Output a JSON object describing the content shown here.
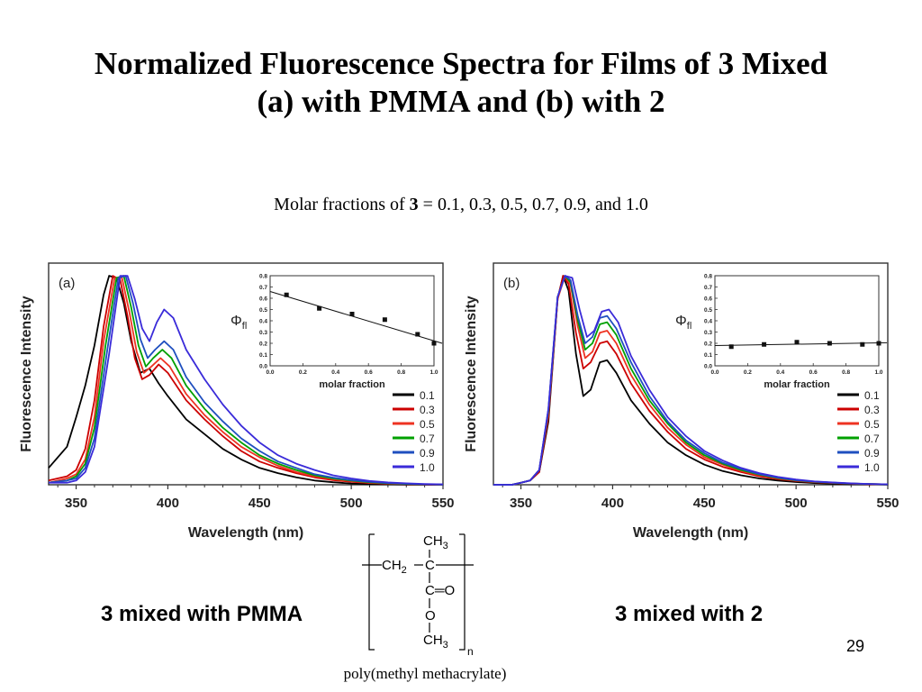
{
  "slide": {
    "title_line1": "Normalized Fluorescence Spectra for Films of 3 Mixed",
    "title_line2": "(a) with PMMA and (b) with 2",
    "subtitle_prefix": "Molar fractions of ",
    "subtitle_bold": "3",
    "subtitle_suffix": " = 0.1, 0.3, 0.5, 0.7, 0.9, and 1.0",
    "caption_left": "3 mixed with PMMA",
    "caption_right": "3 mixed with 2",
    "page_number": "29",
    "polymer_label": "poly(methyl methacrylate)",
    "formula": {
      "ch3_top": "CH3",
      "ch2": "CH2",
      "carbon": "C",
      "carbonyl": "C=O",
      "oxygen": "O",
      "ch3_bottom": "CH3",
      "repeat": "n"
    }
  },
  "chart_data": [
    {
      "type": "line",
      "panel_label": "(a)",
      "xlabel": "Wavelength (nm)",
      "ylabel": "Fluorescence Intensity",
      "xlim": [
        335,
        550
      ],
      "ylim": [
        0,
        1.05
      ],
      "xticks": [
        350,
        400,
        450,
        500,
        550
      ],
      "series": [
        {
          "name": "0.1",
          "color": "#000000",
          "x": [
            335,
            345,
            350,
            355,
            360,
            365,
            368,
            372,
            376,
            380,
            385,
            390,
            395,
            400,
            410,
            420,
            430,
            440,
            450,
            460,
            470,
            480,
            490,
            500,
            510,
            520,
            530,
            540,
            550
          ],
          "y": [
            0.08,
            0.18,
            0.32,
            0.47,
            0.66,
            0.9,
            0.99,
            0.98,
            0.86,
            0.68,
            0.53,
            0.55,
            0.48,
            0.42,
            0.31,
            0.24,
            0.17,
            0.12,
            0.08,
            0.055,
            0.035,
            0.02,
            0.012,
            0.006,
            0.003,
            0.002,
            0.001,
            0.0,
            0.0
          ]
        },
        {
          "name": "0.3",
          "color": "#cc0000",
          "x": [
            335,
            345,
            350,
            355,
            360,
            365,
            370,
            374,
            378,
            382,
            386,
            390,
            395,
            400,
            410,
            420,
            430,
            440,
            450,
            460,
            470,
            480,
            490,
            500,
            510,
            520,
            530,
            540,
            550
          ],
          "y": [
            0.02,
            0.04,
            0.07,
            0.17,
            0.4,
            0.75,
            0.99,
            0.97,
            0.8,
            0.6,
            0.5,
            0.52,
            0.57,
            0.53,
            0.4,
            0.31,
            0.23,
            0.16,
            0.11,
            0.08,
            0.055,
            0.035,
            0.022,
            0.014,
            0.008,
            0.005,
            0.003,
            0.001,
            0.0
          ]
        },
        {
          "name": "0.5",
          "color": "#ee3322",
          "x": [
            335,
            345,
            350,
            355,
            360,
            365,
            371,
            375,
            379,
            383,
            387,
            391,
            396,
            401,
            410,
            420,
            430,
            440,
            450,
            460,
            470,
            480,
            490,
            500,
            510,
            520,
            530,
            540,
            550
          ],
          "y": [
            0.01,
            0.03,
            0.05,
            0.12,
            0.32,
            0.68,
            0.98,
            0.98,
            0.82,
            0.63,
            0.53,
            0.56,
            0.6,
            0.56,
            0.43,
            0.33,
            0.25,
            0.18,
            0.13,
            0.09,
            0.06,
            0.04,
            0.026,
            0.017,
            0.01,
            0.006,
            0.004,
            0.002,
            0.001
          ]
        },
        {
          "name": "0.7",
          "color": "#00a000",
          "x": [
            335,
            345,
            350,
            355,
            360,
            366,
            372,
            376,
            380,
            384,
            388,
            392,
            397,
            402,
            410,
            420,
            430,
            440,
            450,
            460,
            470,
            480,
            490,
            500,
            510,
            520,
            530,
            540,
            550
          ],
          "y": [
            0.01,
            0.02,
            0.04,
            0.1,
            0.27,
            0.66,
            0.98,
            0.99,
            0.84,
            0.66,
            0.56,
            0.6,
            0.64,
            0.6,
            0.47,
            0.36,
            0.27,
            0.2,
            0.14,
            0.1,
            0.07,
            0.045,
            0.03,
            0.02,
            0.012,
            0.007,
            0.004,
            0.002,
            0.001
          ]
        },
        {
          "name": "0.9",
          "color": "#1f4fbf",
          "x": [
            335,
            345,
            350,
            355,
            360,
            367,
            373,
            377,
            381,
            385,
            389,
            393,
            398,
            403,
            410,
            420,
            430,
            440,
            450,
            460,
            470,
            480,
            490,
            500,
            510,
            520,
            530,
            540,
            550
          ],
          "y": [
            0.01,
            0.02,
            0.03,
            0.08,
            0.22,
            0.64,
            0.98,
            0.99,
            0.86,
            0.69,
            0.6,
            0.64,
            0.68,
            0.64,
            0.51,
            0.39,
            0.3,
            0.22,
            0.16,
            0.11,
            0.08,
            0.05,
            0.034,
            0.022,
            0.014,
            0.008,
            0.005,
            0.002,
            0.001
          ]
        },
        {
          "name": "1.0",
          "color": "#3a2bd9",
          "x": [
            335,
            345,
            350,
            355,
            360,
            368,
            374,
            378,
            382,
            386,
            390,
            394,
            398,
            403,
            410,
            420,
            430,
            440,
            450,
            460,
            470,
            480,
            490,
            500,
            510,
            520,
            530,
            540,
            550
          ],
          "y": [
            0.01,
            0.01,
            0.02,
            0.06,
            0.18,
            0.62,
            0.99,
            0.99,
            0.88,
            0.74,
            0.68,
            0.77,
            0.83,
            0.79,
            0.64,
            0.5,
            0.38,
            0.28,
            0.2,
            0.14,
            0.1,
            0.07,
            0.045,
            0.03,
            0.018,
            0.011,
            0.007,
            0.004,
            0.002
          ]
        }
      ],
      "legend": "lower-right",
      "inset": {
        "type": "scatter",
        "ylabel": "Φfl",
        "xlabel": "molar fraction",
        "xlim": [
          0.0,
          1.0
        ],
        "ylim": [
          0.0,
          0.8
        ],
        "xticks": [
          0.0,
          0.2,
          0.4,
          0.6,
          0.8,
          1.0
        ],
        "yticks": [
          0.0,
          0.1,
          0.2,
          0.3,
          0.4,
          0.5,
          0.6,
          0.7,
          0.8
        ],
        "points": {
          "x": [
            0.1,
            0.3,
            0.5,
            0.7,
            0.9,
            1.0
          ],
          "y": [
            0.63,
            0.51,
            0.46,
            0.41,
            0.28,
            0.2
          ]
        },
        "fit": {
          "x": [
            0.0,
            1.05
          ],
          "y": [
            0.66,
            0.2
          ]
        }
      }
    },
    {
      "type": "line",
      "panel_label": "(b)",
      "xlabel": "Wavelength (nm)",
      "ylabel": "Fluorescence Intensity",
      "xlim": [
        335,
        550
      ],
      "ylim": [
        0,
        1.05
      ],
      "xticks": [
        350,
        400,
        450,
        500,
        550
      ],
      "series": [
        {
          "name": "0.1",
          "color": "#000000",
          "x": [
            335,
            345,
            350,
            355,
            360,
            365,
            370,
            373,
            376,
            380,
            384,
            388,
            393,
            397,
            402,
            410,
            420,
            430,
            440,
            450,
            460,
            470,
            480,
            490,
            500,
            510,
            520,
            530,
            540,
            550
          ],
          "y": [
            0.0,
            0.0,
            0.01,
            0.02,
            0.06,
            0.3,
            0.88,
            0.99,
            0.92,
            0.62,
            0.42,
            0.45,
            0.58,
            0.59,
            0.53,
            0.4,
            0.29,
            0.2,
            0.14,
            0.095,
            0.065,
            0.045,
            0.03,
            0.02,
            0.013,
            0.008,
            0.005,
            0.003,
            0.002,
            0.001
          ]
        },
        {
          "name": "0.3",
          "color": "#cc0000",
          "x": [
            335,
            345,
            350,
            355,
            360,
            365,
            370,
            373,
            376,
            380,
            384,
            388,
            393,
            397,
            402,
            410,
            420,
            430,
            440,
            450,
            460,
            470,
            480,
            490,
            500,
            510,
            520,
            530,
            540,
            550
          ],
          "y": [
            0.0,
            0.0,
            0.01,
            0.02,
            0.06,
            0.32,
            0.88,
            0.99,
            0.95,
            0.72,
            0.55,
            0.58,
            0.67,
            0.68,
            0.62,
            0.48,
            0.35,
            0.25,
            0.17,
            0.12,
            0.085,
            0.06,
            0.04,
            0.027,
            0.018,
            0.012,
            0.008,
            0.005,
            0.003,
            0.002
          ]
        },
        {
          "name": "0.5",
          "color": "#ee3322",
          "x": [
            335,
            345,
            350,
            355,
            360,
            365,
            370,
            374,
            377,
            381,
            385,
            389,
            393,
            397,
            402,
            410,
            420,
            430,
            440,
            450,
            460,
            470,
            480,
            490,
            500,
            510,
            520,
            530,
            540,
            550
          ],
          "y": [
            0.0,
            0.0,
            0.01,
            0.02,
            0.07,
            0.34,
            0.88,
            0.99,
            0.95,
            0.75,
            0.6,
            0.63,
            0.72,
            0.73,
            0.67,
            0.52,
            0.38,
            0.27,
            0.19,
            0.13,
            0.095,
            0.065,
            0.045,
            0.03,
            0.02,
            0.013,
            0.009,
            0.006,
            0.004,
            0.002
          ]
        },
        {
          "name": "0.7",
          "color": "#00a000",
          "x": [
            335,
            345,
            350,
            355,
            360,
            365,
            370,
            374,
            377,
            381,
            385,
            389,
            393,
            397,
            402,
            410,
            420,
            430,
            440,
            450,
            460,
            470,
            480,
            490,
            500,
            510,
            520,
            530,
            540,
            550
          ],
          "y": [
            0.0,
            0.0,
            0.01,
            0.02,
            0.07,
            0.35,
            0.89,
            0.99,
            0.96,
            0.78,
            0.64,
            0.67,
            0.76,
            0.77,
            0.71,
            0.55,
            0.4,
            0.29,
            0.2,
            0.14,
            0.1,
            0.07,
            0.048,
            0.032,
            0.021,
            0.014,
            0.01,
            0.006,
            0.004,
            0.002
          ]
        },
        {
          "name": "0.9",
          "color": "#1f4fbf",
          "x": [
            335,
            345,
            350,
            355,
            360,
            365,
            370,
            374,
            377,
            381,
            385,
            389,
            393,
            397,
            402,
            410,
            420,
            430,
            440,
            450,
            460,
            470,
            480,
            490,
            500,
            510,
            520,
            530,
            540,
            550
          ],
          "y": [
            0.0,
            0.0,
            0.01,
            0.02,
            0.07,
            0.36,
            0.89,
            0.99,
            0.97,
            0.8,
            0.67,
            0.7,
            0.79,
            0.8,
            0.74,
            0.58,
            0.42,
            0.3,
            0.21,
            0.15,
            0.105,
            0.075,
            0.05,
            0.034,
            0.022,
            0.015,
            0.01,
            0.006,
            0.004,
            0.002
          ]
        },
        {
          "name": "1.0",
          "color": "#3a2bd9",
          "x": [
            335,
            345,
            350,
            355,
            360,
            365,
            370,
            374,
            378,
            382,
            386,
            390,
            394,
            398,
            403,
            410,
            420,
            430,
            440,
            450,
            460,
            470,
            480,
            490,
            500,
            510,
            520,
            530,
            540,
            550
          ],
          "y": [
            0.0,
            0.0,
            0.01,
            0.02,
            0.07,
            0.36,
            0.89,
            0.99,
            0.98,
            0.83,
            0.7,
            0.73,
            0.82,
            0.83,
            0.77,
            0.61,
            0.45,
            0.32,
            0.23,
            0.16,
            0.115,
            0.08,
            0.055,
            0.037,
            0.025,
            0.016,
            0.011,
            0.007,
            0.004,
            0.002
          ]
        }
      ],
      "legend": "lower-right",
      "inset": {
        "type": "scatter",
        "ylabel": "Φfl",
        "xlabel": "molar fraction",
        "xlim": [
          0.0,
          1.0
        ],
        "ylim": [
          0.0,
          0.8
        ],
        "xticks": [
          0.0,
          0.2,
          0.4,
          0.6,
          0.8,
          1.0
        ],
        "yticks": [
          0.0,
          0.1,
          0.2,
          0.3,
          0.4,
          0.5,
          0.6,
          0.7,
          0.8
        ],
        "points": {
          "x": [
            0.1,
            0.3,
            0.5,
            0.7,
            0.9,
            1.0
          ],
          "y": [
            0.17,
            0.19,
            0.21,
            0.2,
            0.19,
            0.2
          ]
        },
        "fit": {
          "x": [
            0.0,
            1.05
          ],
          "y": [
            0.18,
            0.205
          ]
        }
      }
    }
  ]
}
